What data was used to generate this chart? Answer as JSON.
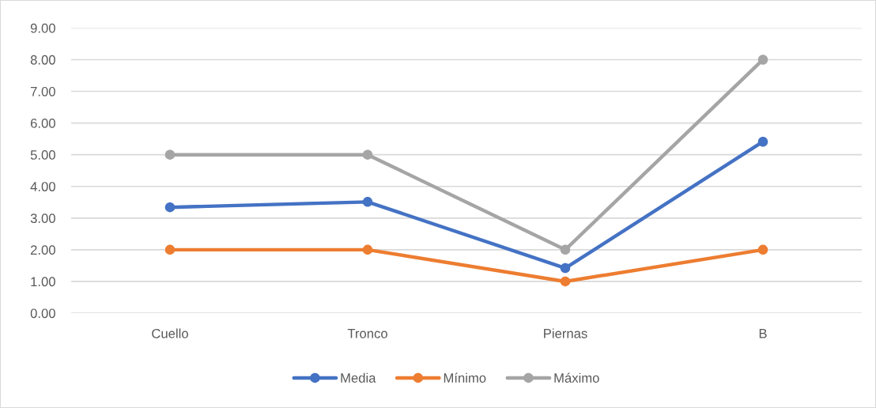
{
  "chart_data": {
    "type": "line",
    "categories": [
      "Cuello",
      "Tronco",
      "Piernas",
      "B"
    ],
    "series": [
      {
        "name": "Media",
        "color": "#4472c4",
        "values": [
          3.34,
          3.51,
          1.42,
          5.41
        ]
      },
      {
        "name": "Mínimo",
        "color": "#ed7d31",
        "values": [
          2,
          2,
          1,
          2
        ]
      },
      {
        "name": "Máximo",
        "color": "#a5a5a5",
        "values": [
          5,
          5,
          2,
          8
        ]
      }
    ],
    "ylim": [
      0,
      9
    ],
    "yticks": [
      {
        "value": 0,
        "label": "0.00"
      },
      {
        "value": 1,
        "label": "1.00"
      },
      {
        "value": 2,
        "label": "2.00"
      },
      {
        "value": 3,
        "label": "3.00"
      },
      {
        "value": 4,
        "label": "4.00"
      },
      {
        "value": 5,
        "label": "5.00"
      },
      {
        "value": 6,
        "label": "6.00"
      },
      {
        "value": 7,
        "label": "7.00"
      },
      {
        "value": 8,
        "label": "8.00"
      },
      {
        "value": 9,
        "label": "9.00"
      }
    ],
    "grid": "y",
    "legend": "bottom",
    "marker": "circle",
    "line_style": "solid"
  }
}
